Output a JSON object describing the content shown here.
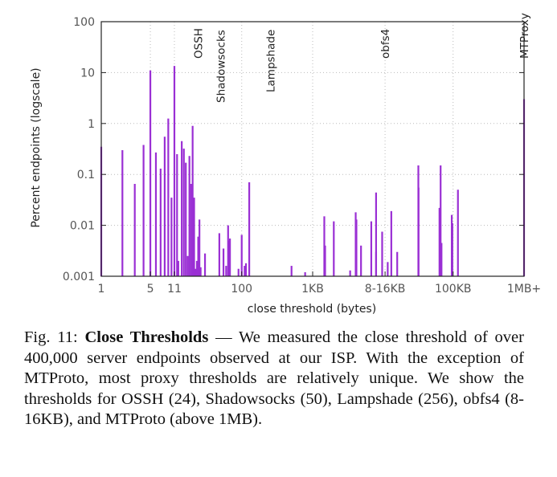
{
  "chart_data": {
    "type": "bar",
    "title": "",
    "xlabel": "close threshold (bytes)",
    "ylabel": "Percent endpoints (logscale)",
    "yscale": "log",
    "ylim": [
      0.001,
      100
    ],
    "xscale": "log",
    "xlim": [
      1,
      1048576
    ],
    "grid": "dotted",
    "color": "#9a2fd4",
    "x_ticks": [
      {
        "v": 1,
        "label": "1"
      },
      {
        "v": 5,
        "label": "5"
      },
      {
        "v": 11,
        "label": "11"
      },
      {
        "v": 100,
        "label": "100"
      },
      {
        "v": 1024,
        "label": "1KB"
      },
      {
        "v": 11000,
        "label": "8-16KB"
      },
      {
        "v": 102400,
        "label": "100KB"
      },
      {
        "v": 1048576,
        "label": "1MB+"
      }
    ],
    "y_ticks": [
      {
        "v": 0.001,
        "label": "0.001"
      },
      {
        "v": 0.01,
        "label": "0.01"
      },
      {
        "v": 0.1,
        "label": "0.1"
      },
      {
        "v": 1,
        "label": "1"
      },
      {
        "v": 10,
        "label": "10"
      },
      {
        "v": 100,
        "label": "100"
      }
    ],
    "annotations": [
      {
        "x": 24,
        "label": "OSSH",
        "pos": "high"
      },
      {
        "x": 50,
        "label": "Shadowsocks",
        "pos": "low"
      },
      {
        "x": 256,
        "label": "Lampshade",
        "pos": "mid"
      },
      {
        "x": 11000,
        "label": "obfs4",
        "pos": "high"
      },
      {
        "x": 1048576,
        "label": "MTProxy",
        "pos": "high"
      }
    ],
    "bars": [
      {
        "x": 1,
        "y": 0.35
      },
      {
        "x": 2,
        "y": 0.3
      },
      {
        "x": 3,
        "y": 0.065
      },
      {
        "x": 4,
        "y": 0.38
      },
      {
        "x": 5,
        "y": 11
      },
      {
        "x": 6,
        "y": 0.27
      },
      {
        "x": 7,
        "y": 0.13
      },
      {
        "x": 8,
        "y": 0.55
      },
      {
        "x": 9,
        "y": 1.25
      },
      {
        "x": 10,
        "y": 0.035
      },
      {
        "x": 11,
        "y": 13.5
      },
      {
        "x": 12,
        "y": 0.25
      },
      {
        "x": 12.5,
        "y": 0.002
      },
      {
        "x": 14,
        "y": 0.45
      },
      {
        "x": 15,
        "y": 0.32
      },
      {
        "x": 16,
        "y": 0.17
      },
      {
        "x": 17,
        "y": 0.0025
      },
      {
        "x": 18,
        "y": 0.23
      },
      {
        "x": 19,
        "y": 0.065
      },
      {
        "x": 20,
        "y": 0.9
      },
      {
        "x": 21,
        "y": 0.035
      },
      {
        "x": 22,
        "y": 0.0014
      },
      {
        "x": 23,
        "y": 0.002
      },
      {
        "x": 24,
        "y": 0.006
      },
      {
        "x": 25,
        "y": 0.013
      },
      {
        "x": 26,
        "y": 0.0015
      },
      {
        "x": 30,
        "y": 0.0028
      },
      {
        "x": 48,
        "y": 0.007
      },
      {
        "x": 55,
        "y": 0.0035
      },
      {
        "x": 60,
        "y": 0.0016
      },
      {
        "x": 64,
        "y": 0.01
      },
      {
        "x": 66,
        "y": 0.005
      },
      {
        "x": 68,
        "y": 0.0055
      },
      {
        "x": 90,
        "y": 0.0014
      },
      {
        "x": 100,
        "y": 0.0065
      },
      {
        "x": 110,
        "y": 0.0016
      },
      {
        "x": 115,
        "y": 0.0018
      },
      {
        "x": 128,
        "y": 0.07
      },
      {
        "x": 512,
        "y": 0.0016
      },
      {
        "x": 800,
        "y": 0.0012
      },
      {
        "x": 1500,
        "y": 0.015
      },
      {
        "x": 1540,
        "y": 0.004
      },
      {
        "x": 2048,
        "y": 0.012
      },
      {
        "x": 3500,
        "y": 0.0013
      },
      {
        "x": 4200,
        "y": 0.018
      },
      {
        "x": 4300,
        "y": 0.013
      },
      {
        "x": 5000,
        "y": 0.004
      },
      {
        "x": 7000,
        "y": 0.012
      },
      {
        "x": 8192,
        "y": 0.044
      },
      {
        "x": 8200,
        "y": 0.003
      },
      {
        "x": 10000,
        "y": 0.0075
      },
      {
        "x": 12000,
        "y": 0.0019
      },
      {
        "x": 13500,
        "y": 0.019
      },
      {
        "x": 16384,
        "y": 0.003
      },
      {
        "x": 32768,
        "y": 0.15
      },
      {
        "x": 33000,
        "y": 0.055
      },
      {
        "x": 65536,
        "y": 0.022
      },
      {
        "x": 68000,
        "y": 0.15
      },
      {
        "x": 70000,
        "y": 0.0045
      },
      {
        "x": 98000,
        "y": 0.016
      },
      {
        "x": 100000,
        "y": 0.011
      },
      {
        "x": 120000,
        "y": 0.05
      },
      {
        "x": 1048576,
        "y": 3
      }
    ]
  },
  "caption": {
    "prefix": "Fig. 11: ",
    "title": "Close Thresholds",
    "body": " — We measured the close threshold of over 400,000 server endpoints observed at our ISP. With the exception of MTProto, most proxy thresholds are relatively unique. We show the thresholds for OSSH (24), Shadowsocks (50), Lampshade (256), obfs4 (8-16KB), and MTProto (above 1MB)."
  }
}
